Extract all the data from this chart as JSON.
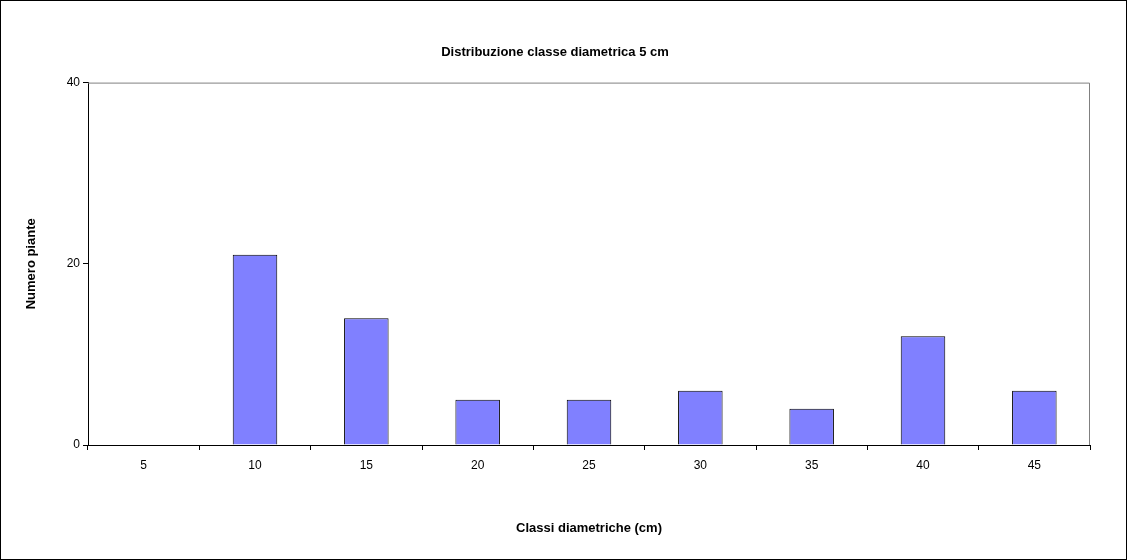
{
  "chart_data": {
    "type": "bar",
    "title": "Distribuzione classe diametrica 5 cm",
    "xlabel": "Classi diametriche (cm)",
    "ylabel": "Numero piante",
    "categories": [
      "5",
      "10",
      "15",
      "20",
      "25",
      "30",
      "35",
      "40",
      "45"
    ],
    "values": [
      0,
      21,
      14,
      5,
      5,
      6,
      4,
      12,
      6
    ],
    "color": "#8080ff",
    "ylim": [
      0,
      40
    ],
    "yticks": [
      0,
      20,
      40
    ],
    "grid": false,
    "legend": false
  }
}
